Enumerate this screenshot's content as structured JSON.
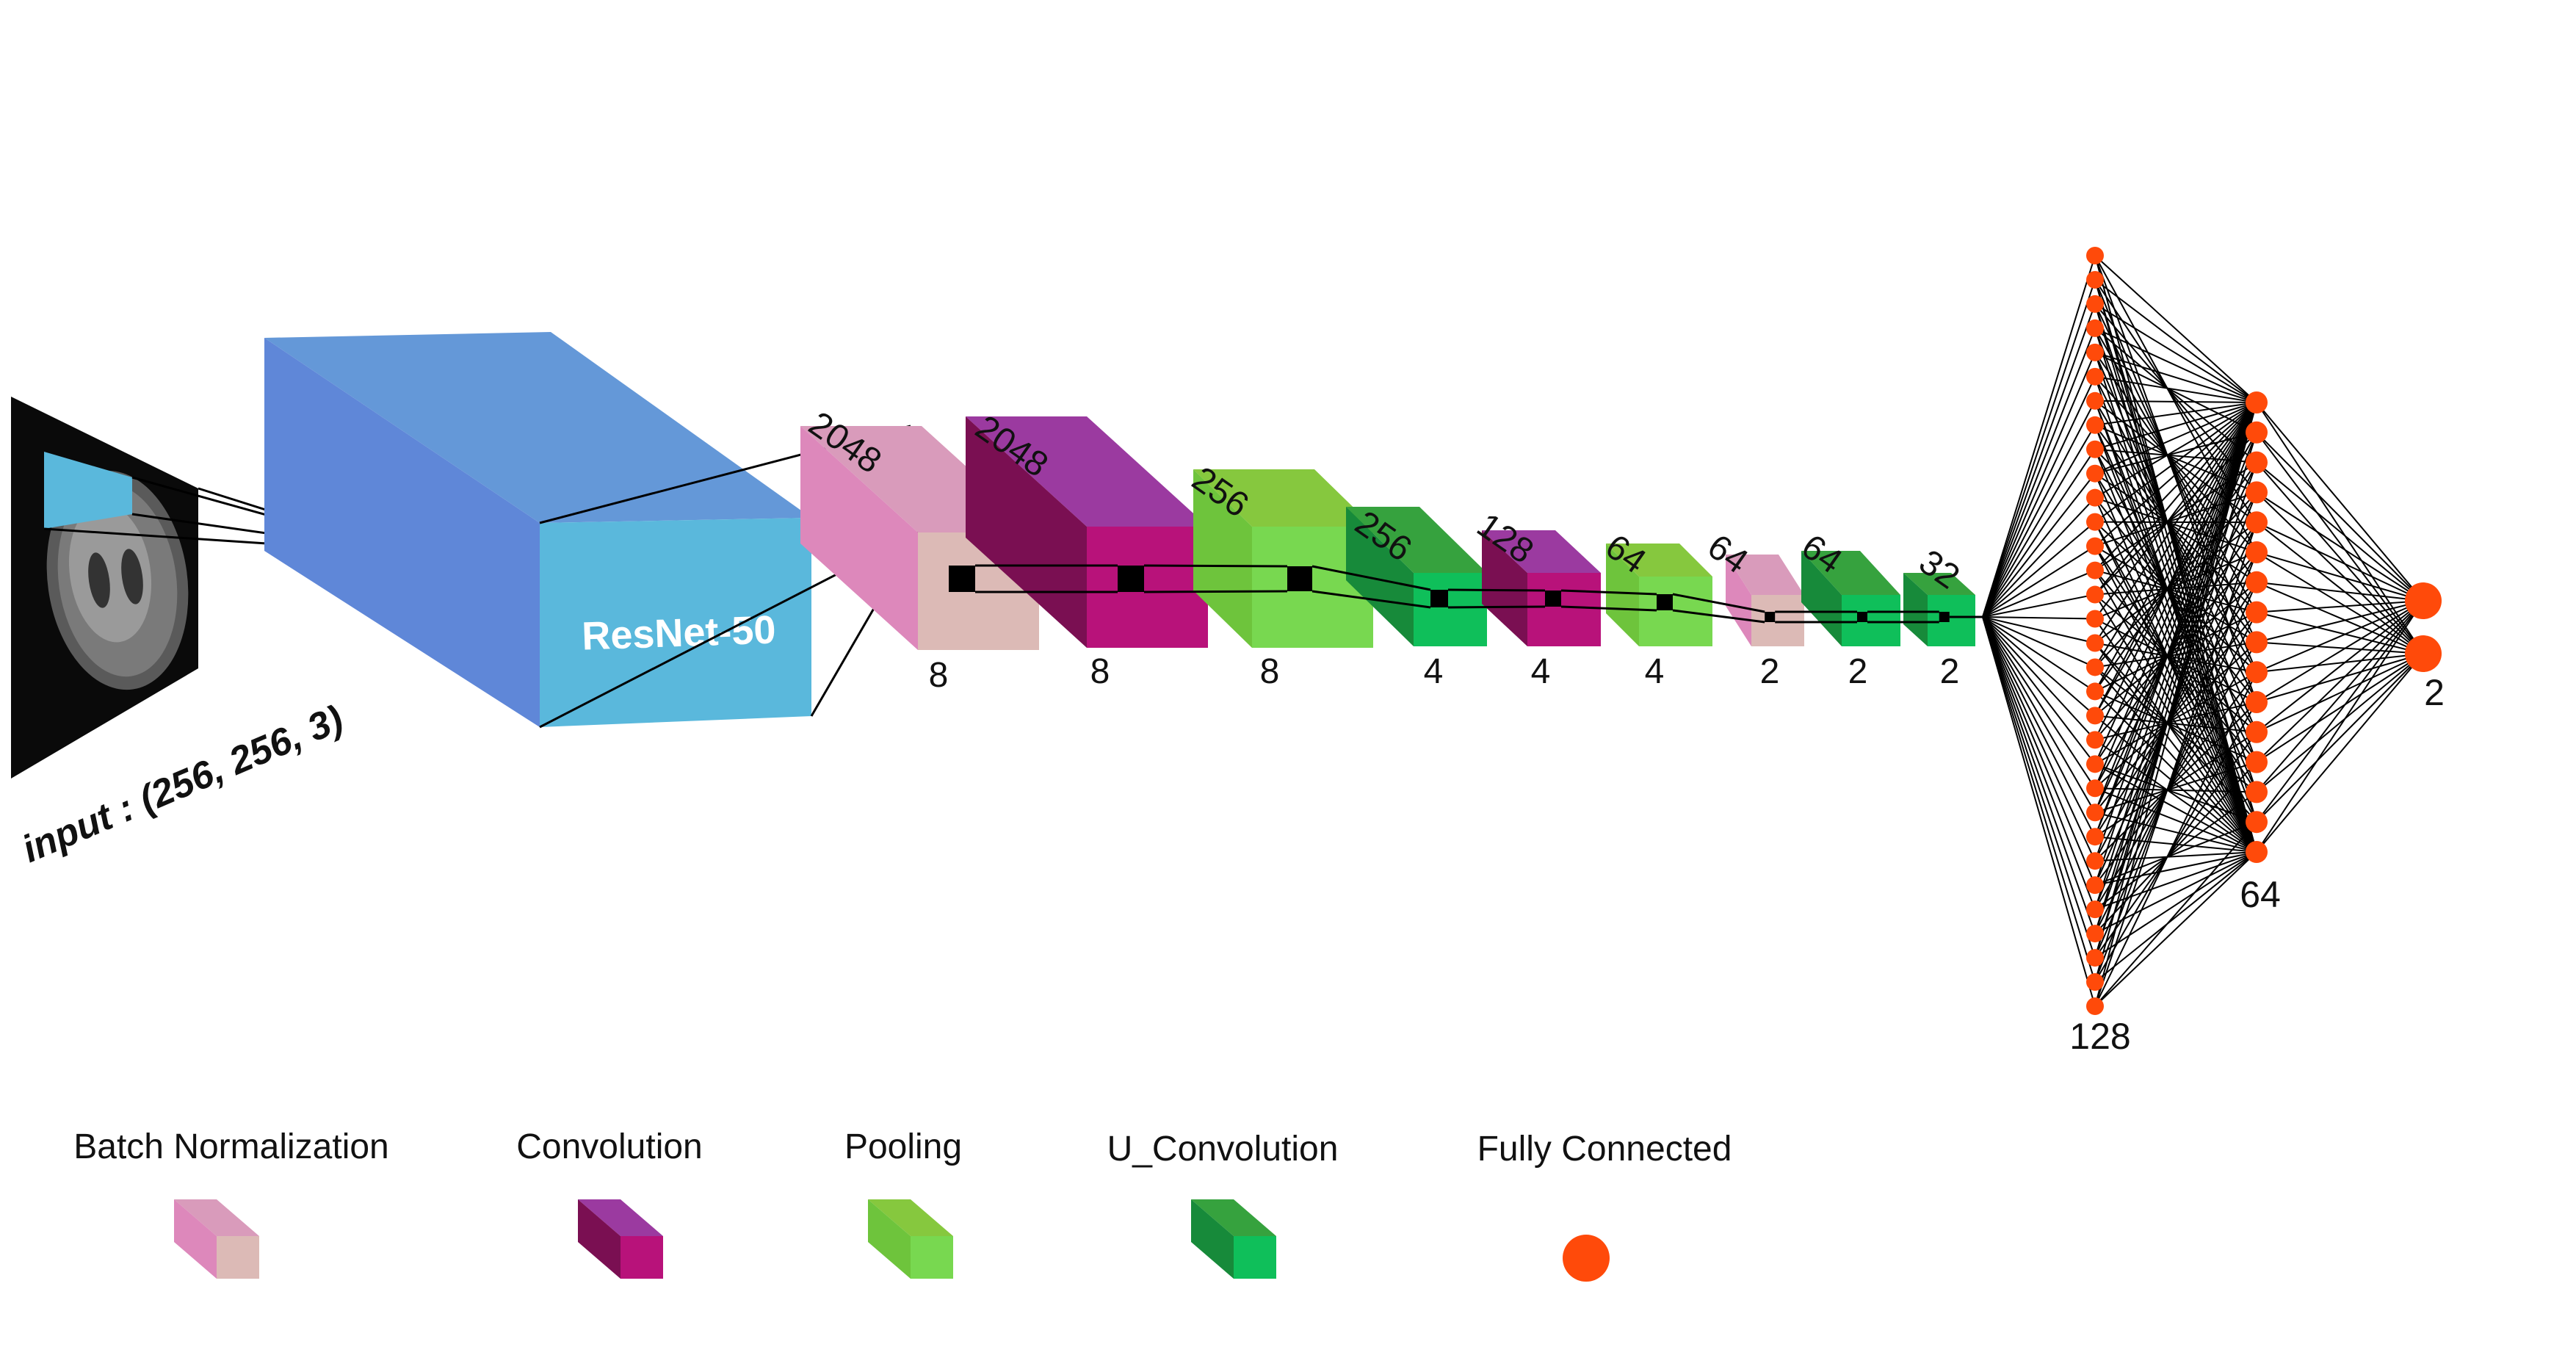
{
  "input": {
    "label": "input : (256, 256, 3)"
  },
  "backbone": {
    "label": "ResNet-50"
  },
  "layers": [
    {
      "type": "batch_norm",
      "depth": "2048",
      "size": "8"
    },
    {
      "type": "convolution",
      "depth": "2048",
      "size": "8"
    },
    {
      "type": "pooling",
      "depth": "256",
      "size": "8"
    },
    {
      "type": "u_convolution",
      "depth": "256",
      "size": "4"
    },
    {
      "type": "convolution",
      "depth": "128",
      "size": "4"
    },
    {
      "type": "pooling",
      "depth": "64",
      "size": "4"
    },
    {
      "type": "batch_norm",
      "depth": "64",
      "size": "2"
    },
    {
      "type": "u_convolution",
      "depth": "64",
      "size": "2"
    },
    {
      "type": "u_convolution",
      "depth": "32",
      "size": "2"
    }
  ],
  "fully_connected": [
    {
      "nodes": 32,
      "label": "128"
    },
    {
      "nodes": 16,
      "label": "64"
    },
    {
      "nodes": 2,
      "label": "2"
    }
  ],
  "legend": [
    {
      "label": "Batch Normalization",
      "type": "batch_norm"
    },
    {
      "label": "Convolution",
      "type": "convolution"
    },
    {
      "label": "Pooling",
      "type": "pooling"
    },
    {
      "label": "U_Convolution",
      "type": "u_convolution"
    },
    {
      "label": "Fully Connected",
      "type": "fully_connected"
    }
  ],
  "colors": {
    "batch_norm": {
      "top": "#d99bbb",
      "side": "#dd88bb",
      "front": "#dcbab6"
    },
    "convolution": {
      "top": "#9b3aa0",
      "side": "#7a0f52",
      "front": "#b8127a"
    },
    "pooling": {
      "top": "#86c83e",
      "side": "#6ec43c",
      "front": "#78d850"
    },
    "u_convolution": {
      "top": "#36a23e",
      "side": "#178a3a",
      "front": "#0fbf5a"
    },
    "resnet": {
      "top": "#6498d8",
      "side": "#5f87d8",
      "front": "#5ab8dc"
    },
    "node": "#ff4a0a"
  }
}
